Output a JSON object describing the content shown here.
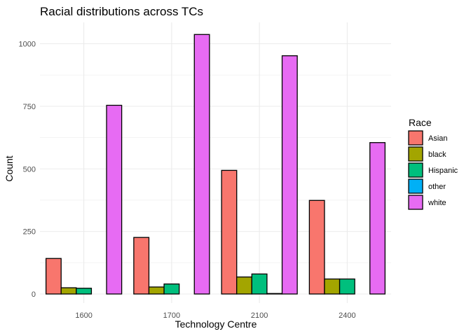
{
  "chart_data": {
    "type": "bar",
    "title": "Racial distributions across TCs",
    "xlabel": "Technology Centre",
    "ylabel": "Count",
    "categories": [
      "1600",
      "1700",
      "2100",
      "2400"
    ],
    "series": [
      {
        "name": "Asian",
        "color": "#F8766D",
        "values": [
          142,
          226,
          494,
          374
        ]
      },
      {
        "name": "black",
        "color": "#A3A500",
        "values": [
          25,
          28,
          68,
          60
        ]
      },
      {
        "name": "Hispanic",
        "color": "#00BF7D",
        "values": [
          23,
          40,
          80,
          60
        ]
      },
      {
        "name": "other",
        "color": "#00B0F6",
        "values": [
          0,
          0,
          2,
          0
        ]
      },
      {
        "name": "white",
        "color": "#E76BF3",
        "values": [
          754,
          1037,
          952,
          605
        ]
      }
    ],
    "ylim": [
      0,
      1090
    ],
    "yticks": [
      0,
      250,
      500,
      750,
      1000
    ],
    "legend": {
      "title": "Race",
      "position": "right"
    },
    "grid": true
  }
}
